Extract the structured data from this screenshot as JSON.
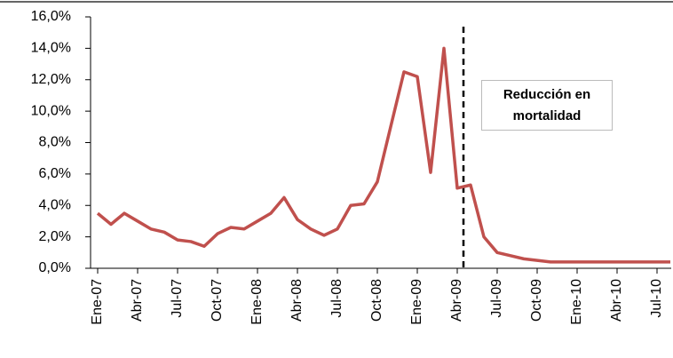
{
  "chart_data": {
    "type": "line",
    "categories": [
      "Ene-07",
      null,
      null,
      "Abr-07",
      null,
      null,
      "Jul-07",
      null,
      null,
      "Oct-07",
      null,
      null,
      "Ene-08",
      null,
      null,
      "Abr-08",
      null,
      null,
      "Jul-08",
      null,
      null,
      "Oct-08",
      null,
      null,
      "Ene-09",
      null,
      null,
      "Abr-09",
      null,
      null,
      "Jul-09",
      null,
      null,
      "Oct-09",
      null,
      null,
      "Ene-10",
      null,
      null,
      "Abr-10",
      null,
      null,
      "Jul-10",
      null
    ],
    "series": [
      {
        "color": "#c0504d",
        "values": [
          3.5,
          2.8,
          3.5,
          3.0,
          2.5,
          2.3,
          1.8,
          1.7,
          1.4,
          2.2,
          2.6,
          2.5,
          3.0,
          3.5,
          4.5,
          3.1,
          2.5,
          2.1,
          2.5,
          4.0,
          4.1,
          5.5,
          9.0,
          12.5,
          12.2,
          6.1,
          14.0,
          5.1,
          5.3,
          2.0,
          1.0,
          0.8,
          0.6,
          0.5,
          0.4,
          0.4,
          0.4,
          0.4,
          0.4,
          0.4,
          0.4,
          0.4,
          0.4,
          0.4
        ]
      }
    ],
    "ylim": [
      0,
      16
    ],
    "yticks": [
      {
        "value": 0,
        "label": "0,0%"
      },
      {
        "value": 2,
        "label": "2,0%"
      },
      {
        "value": 4,
        "label": "4,0%"
      },
      {
        "value": 6,
        "label": "6,0%"
      },
      {
        "value": 8,
        "label": "8,0%"
      },
      {
        "value": 10,
        "label": "10,0%"
      },
      {
        "value": 12,
        "label": "12,0%"
      },
      {
        "value": 14,
        "label": "14,0%"
      },
      {
        "value": 16,
        "label": "16,0%"
      }
    ],
    "annotation": "Reducción en mortalidad"
  }
}
